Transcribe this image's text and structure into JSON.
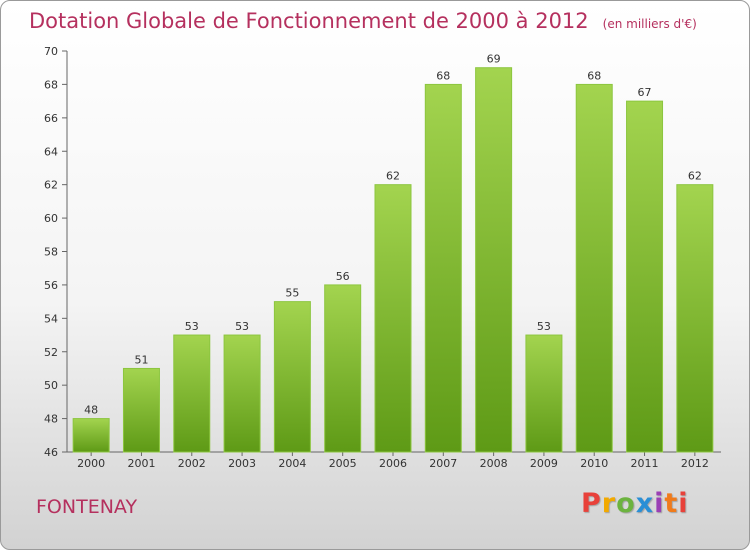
{
  "title": "Dotation Globale de Fonctionnement de 2000 à 2012",
  "unit": "(en milliers d'€)",
  "place": "FONTENAY",
  "brand": {
    "letters": [
      "P",
      "r",
      "o",
      "x",
      "i",
      "t",
      "i"
    ]
  },
  "colors": {
    "title": "#b5305e",
    "bar_top": "#a3d44f",
    "bar_bottom": "#5e9a16"
  },
  "chart_data": {
    "type": "bar",
    "title": "Dotation Globale de Fonctionnement de 2000 à 2012",
    "subtitle": "(en milliers d'€)",
    "categories": [
      "2000",
      "2001",
      "2002",
      "2003",
      "2004",
      "2005",
      "2006",
      "2007",
      "2008",
      "2009",
      "2010",
      "2011",
      "2012"
    ],
    "values": [
      48,
      51,
      53,
      53,
      55,
      56,
      62,
      68,
      69,
      53,
      68,
      67,
      62
    ],
    "ylim": [
      46,
      70
    ],
    "yticks": [
      46,
      48,
      50,
      52,
      54,
      56,
      58,
      60,
      62,
      64,
      66,
      68,
      70
    ],
    "grid": false,
    "legend": "none"
  }
}
